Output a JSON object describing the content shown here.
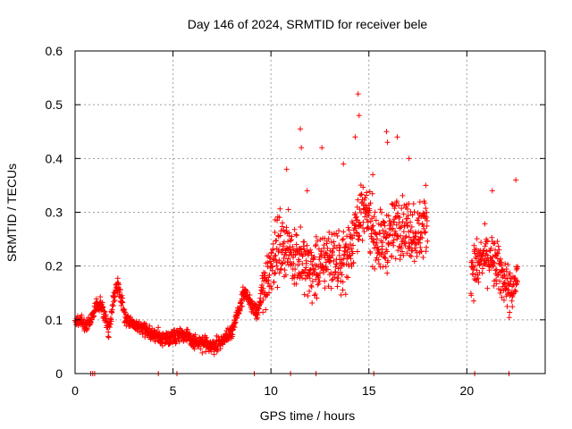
{
  "chart_data": {
    "type": "scatter",
    "title": "Day 146 of 2024, SRMTID for receiver bele",
    "xlabel": "GPS time / hours",
    "ylabel": "SRMTID / TECUs",
    "xlim": [
      0,
      24
    ],
    "ylim": [
      0,
      0.6
    ],
    "grid": true,
    "marker": "+",
    "color": "#ff0000",
    "x_ticks": [
      0,
      5,
      10,
      15,
      20
    ],
    "y_ticks": [
      0,
      0.1,
      0.2,
      0.3,
      0.4,
      0.5,
      0.6
    ],
    "x_tick_labels": [
      "0",
      "5",
      "10",
      "15",
      "20"
    ],
    "y_tick_labels": [
      "0",
      "0.1",
      "0.2",
      "0.3",
      "0.4",
      "0.5",
      "0.6"
    ],
    "series": [
      {
        "name": "SRMTID",
        "trend": [
          [
            0.0,
            0.1
          ],
          [
            0.3,
            0.1
          ],
          [
            0.6,
            0.09
          ],
          [
            0.8,
            0.1
          ],
          [
            1.0,
            0.12
          ],
          [
            1.3,
            0.13
          ],
          [
            1.5,
            0.11
          ],
          [
            1.7,
            0.08
          ],
          [
            1.9,
            0.12
          ],
          [
            2.0,
            0.15
          ],
          [
            2.2,
            0.17
          ],
          [
            2.4,
            0.13
          ],
          [
            2.6,
            0.1
          ],
          [
            3.0,
            0.09
          ],
          [
            3.5,
            0.085
          ],
          [
            4.0,
            0.07
          ],
          [
            4.5,
            0.065
          ],
          [
            5.0,
            0.07
          ],
          [
            5.5,
            0.075
          ],
          [
            6.0,
            0.06
          ],
          [
            6.5,
            0.055
          ],
          [
            7.0,
            0.05
          ],
          [
            7.5,
            0.06
          ],
          [
            8.0,
            0.08
          ],
          [
            8.3,
            0.11
          ],
          [
            8.6,
            0.15
          ],
          [
            9.0,
            0.13
          ],
          [
            9.3,
            0.11
          ],
          [
            9.7,
            0.17
          ],
          [
            10.0,
            0.21
          ],
          [
            10.5,
            0.24
          ],
          [
            11.0,
            0.23
          ],
          [
            11.5,
            0.21
          ],
          [
            12.0,
            0.19
          ],
          [
            12.5,
            0.2
          ],
          [
            13.0,
            0.22
          ],
          [
            13.5,
            0.2
          ],
          [
            14.0,
            0.23
          ],
          [
            14.5,
            0.3
          ],
          [
            15.0,
            0.29
          ],
          [
            15.5,
            0.24
          ],
          [
            16.0,
            0.25
          ],
          [
            16.5,
            0.28
          ],
          [
            17.0,
            0.27
          ],
          [
            17.5,
            0.26
          ],
          [
            18.0,
            0.28
          ],
          [
            20.2,
            0.2
          ],
          [
            20.5,
            0.2
          ],
          [
            21.0,
            0.22
          ],
          [
            21.5,
            0.2
          ],
          [
            22.0,
            0.17
          ],
          [
            22.3,
            0.14
          ],
          [
            22.6,
            0.19
          ]
        ],
        "spikes": [
          [
            14.45,
            0.52
          ],
          [
            14.5,
            0.48
          ],
          [
            14.3,
            0.44
          ],
          [
            11.5,
            0.455
          ],
          [
            11.55,
            0.42
          ],
          [
            16.45,
            0.44
          ],
          [
            15.9,
            0.45
          ],
          [
            15.95,
            0.43
          ],
          [
            12.6,
            0.42
          ],
          [
            17.05,
            0.4
          ],
          [
            10.8,
            0.38
          ],
          [
            17.9,
            0.35
          ],
          [
            22.5,
            0.36
          ],
          [
            21.3,
            0.34
          ],
          [
            11.85,
            0.34
          ],
          [
            13.7,
            0.39
          ],
          [
            15.2,
            0.37
          ]
        ],
        "zero_points": [
          0.8,
          0.9,
          1.0,
          4.25,
          5.2,
          9.15,
          11.0,
          12.3,
          15.25,
          20.4,
          22.15
        ]
      }
    ]
  }
}
